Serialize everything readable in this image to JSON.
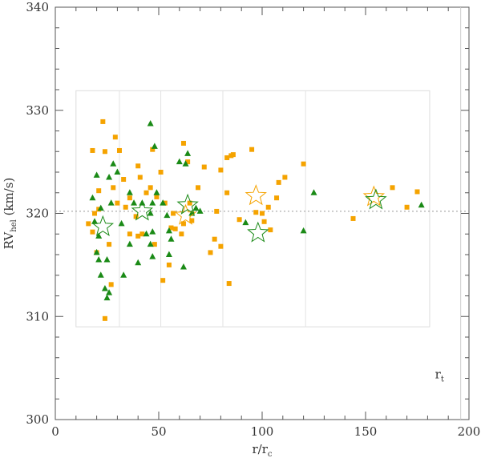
{
  "chart_data": {
    "type": "scatter",
    "title": "",
    "xlabel": {
      "main": "r/r",
      "sub": "c"
    },
    "ylabel": {
      "main": "RV",
      "sub": "hel",
      "unit": " (km/s)"
    },
    "xlim": [
      0,
      200
    ],
    "ylim": [
      300,
      340
    ],
    "xticks": [
      0,
      50,
      100,
      150,
      200
    ],
    "yticks": [
      300,
      310,
      320,
      330,
      340
    ],
    "grid": false,
    "reference_line": {
      "y": 320.2,
      "style": "dotted"
    },
    "vertical_line": {
      "x": 196,
      "label": "r",
      "label_sub": "t",
      "label_y": 304
    },
    "inner_box": {
      "x": [
        10,
        181
      ],
      "y": [
        309,
        331.9
      ]
    },
    "inner_dividers_x": [
      31,
      51,
      81,
      121
    ],
    "colors": {
      "orange": "#f5a300",
      "green": "#1a8a16",
      "axis": "#555555"
    },
    "series": [
      {
        "marker": "square",
        "color": "#f5a300",
        "points": [
          [
            23,
            328.9
          ],
          [
            29,
            327.4
          ],
          [
            18,
            326.1
          ],
          [
            24,
            326
          ],
          [
            31,
            326.1
          ],
          [
            33,
            323.3
          ],
          [
            28,
            322.5
          ],
          [
            21,
            322.2
          ],
          [
            16,
            319
          ],
          [
            18,
            318.2
          ],
          [
            20,
            316.2
          ],
          [
            26,
            317
          ],
          [
            27,
            313.1
          ],
          [
            24,
            309.8
          ],
          [
            19,
            320
          ],
          [
            21,
            320.4
          ],
          [
            30,
            321
          ],
          [
            34,
            320.6
          ],
          [
            36,
            321.5
          ],
          [
            39,
            319.7
          ],
          [
            36,
            318
          ],
          [
            40,
            317.8
          ],
          [
            42,
            318
          ],
          [
            44,
            322
          ],
          [
            41,
            323.5
          ],
          [
            40,
            324.6
          ],
          [
            46,
            322.5
          ],
          [
            47,
            326.2
          ],
          [
            49,
            321.6
          ],
          [
            51,
            324
          ],
          [
            53,
            321
          ],
          [
            55,
            315
          ],
          [
            56,
            318.6
          ],
          [
            52,
            313.5
          ],
          [
            48,
            317
          ],
          [
            57,
            320
          ],
          [
            58,
            318.5
          ],
          [
            61,
            318
          ],
          [
            62,
            319
          ],
          [
            62,
            326.8
          ],
          [
            64,
            325
          ],
          [
            65,
            321
          ],
          [
            66,
            319.3
          ],
          [
            69,
            322.5
          ],
          [
            72,
            324.5
          ],
          [
            75,
            316.2
          ],
          [
            77,
            317.5
          ],
          [
            78,
            320.2
          ],
          [
            80,
            324.2
          ],
          [
            80,
            316.8
          ],
          [
            83,
            322
          ],
          [
            83,
            325.4
          ],
          [
            85,
            325.6
          ],
          [
            84,
            313.2
          ],
          [
            86,
            325.7
          ],
          [
            89,
            319.4
          ],
          [
            95,
            326.2
          ],
          [
            97,
            320.1
          ],
          [
            100,
            320
          ],
          [
            101,
            319.2
          ],
          [
            103,
            320.6
          ],
          [
            104,
            318.4
          ],
          [
            107,
            321.5
          ],
          [
            108,
            323
          ],
          [
            111,
            323.5
          ],
          [
            120,
            324.8
          ],
          [
            144,
            319.5
          ],
          [
            163,
            322.5
          ],
          [
            170,
            320.6
          ],
          [
            175,
            322.1
          ]
        ]
      },
      {
        "marker": "triangle",
        "color": "#1a8a16",
        "points": [
          [
            46,
            328.7
          ],
          [
            18,
            321.5
          ],
          [
            20,
            323.7
          ],
          [
            22,
            320.5
          ],
          [
            19,
            319.2
          ],
          [
            21,
            317.8
          ],
          [
            20,
            316.2
          ],
          [
            21,
            315.5
          ],
          [
            22,
            314
          ],
          [
            25,
            315.5
          ],
          [
            26,
            312.3
          ],
          [
            24,
            312.7
          ],
          [
            25,
            311.8
          ],
          [
            27,
            321
          ],
          [
            26,
            323.5
          ],
          [
            28,
            324.8
          ],
          [
            30,
            324
          ],
          [
            32,
            319
          ],
          [
            33,
            314
          ],
          [
            36,
            322
          ],
          [
            36,
            317
          ],
          [
            38,
            321
          ],
          [
            42,
            321
          ],
          [
            40,
            315.2
          ],
          [
            44,
            318
          ],
          [
            46,
            320
          ],
          [
            48,
            326.5
          ],
          [
            47,
            321
          ],
          [
            49,
            322
          ],
          [
            47,
            318.2
          ],
          [
            46,
            317
          ],
          [
            47,
            315.8
          ],
          [
            52,
            321
          ],
          [
            54,
            319.8
          ],
          [
            55,
            318.3
          ],
          [
            56,
            317.5
          ],
          [
            55,
            316
          ],
          [
            60,
            325
          ],
          [
            63,
            324.8
          ],
          [
            64,
            325.8
          ],
          [
            66,
            320
          ],
          [
            68,
            320.5
          ],
          [
            70,
            320.2
          ],
          [
            62,
            314.8
          ],
          [
            92,
            319.1
          ],
          [
            120,
            318.3
          ],
          [
            125,
            322
          ],
          [
            177,
            320.8
          ]
        ]
      },
      {
        "marker": "star-open",
        "color": "#f5a300",
        "points": [
          [
            97,
            321.7
          ],
          [
            154,
            321.6
          ],
          [
            63,
            319.8
          ]
        ]
      },
      {
        "marker": "star-open",
        "color": "#1a8a16",
        "points": [
          [
            23,
            318.7
          ],
          [
            42,
            320.2
          ],
          [
            64,
            320.8
          ],
          [
            98,
            318.1
          ],
          [
            155,
            321.3
          ]
        ]
      }
    ]
  }
}
